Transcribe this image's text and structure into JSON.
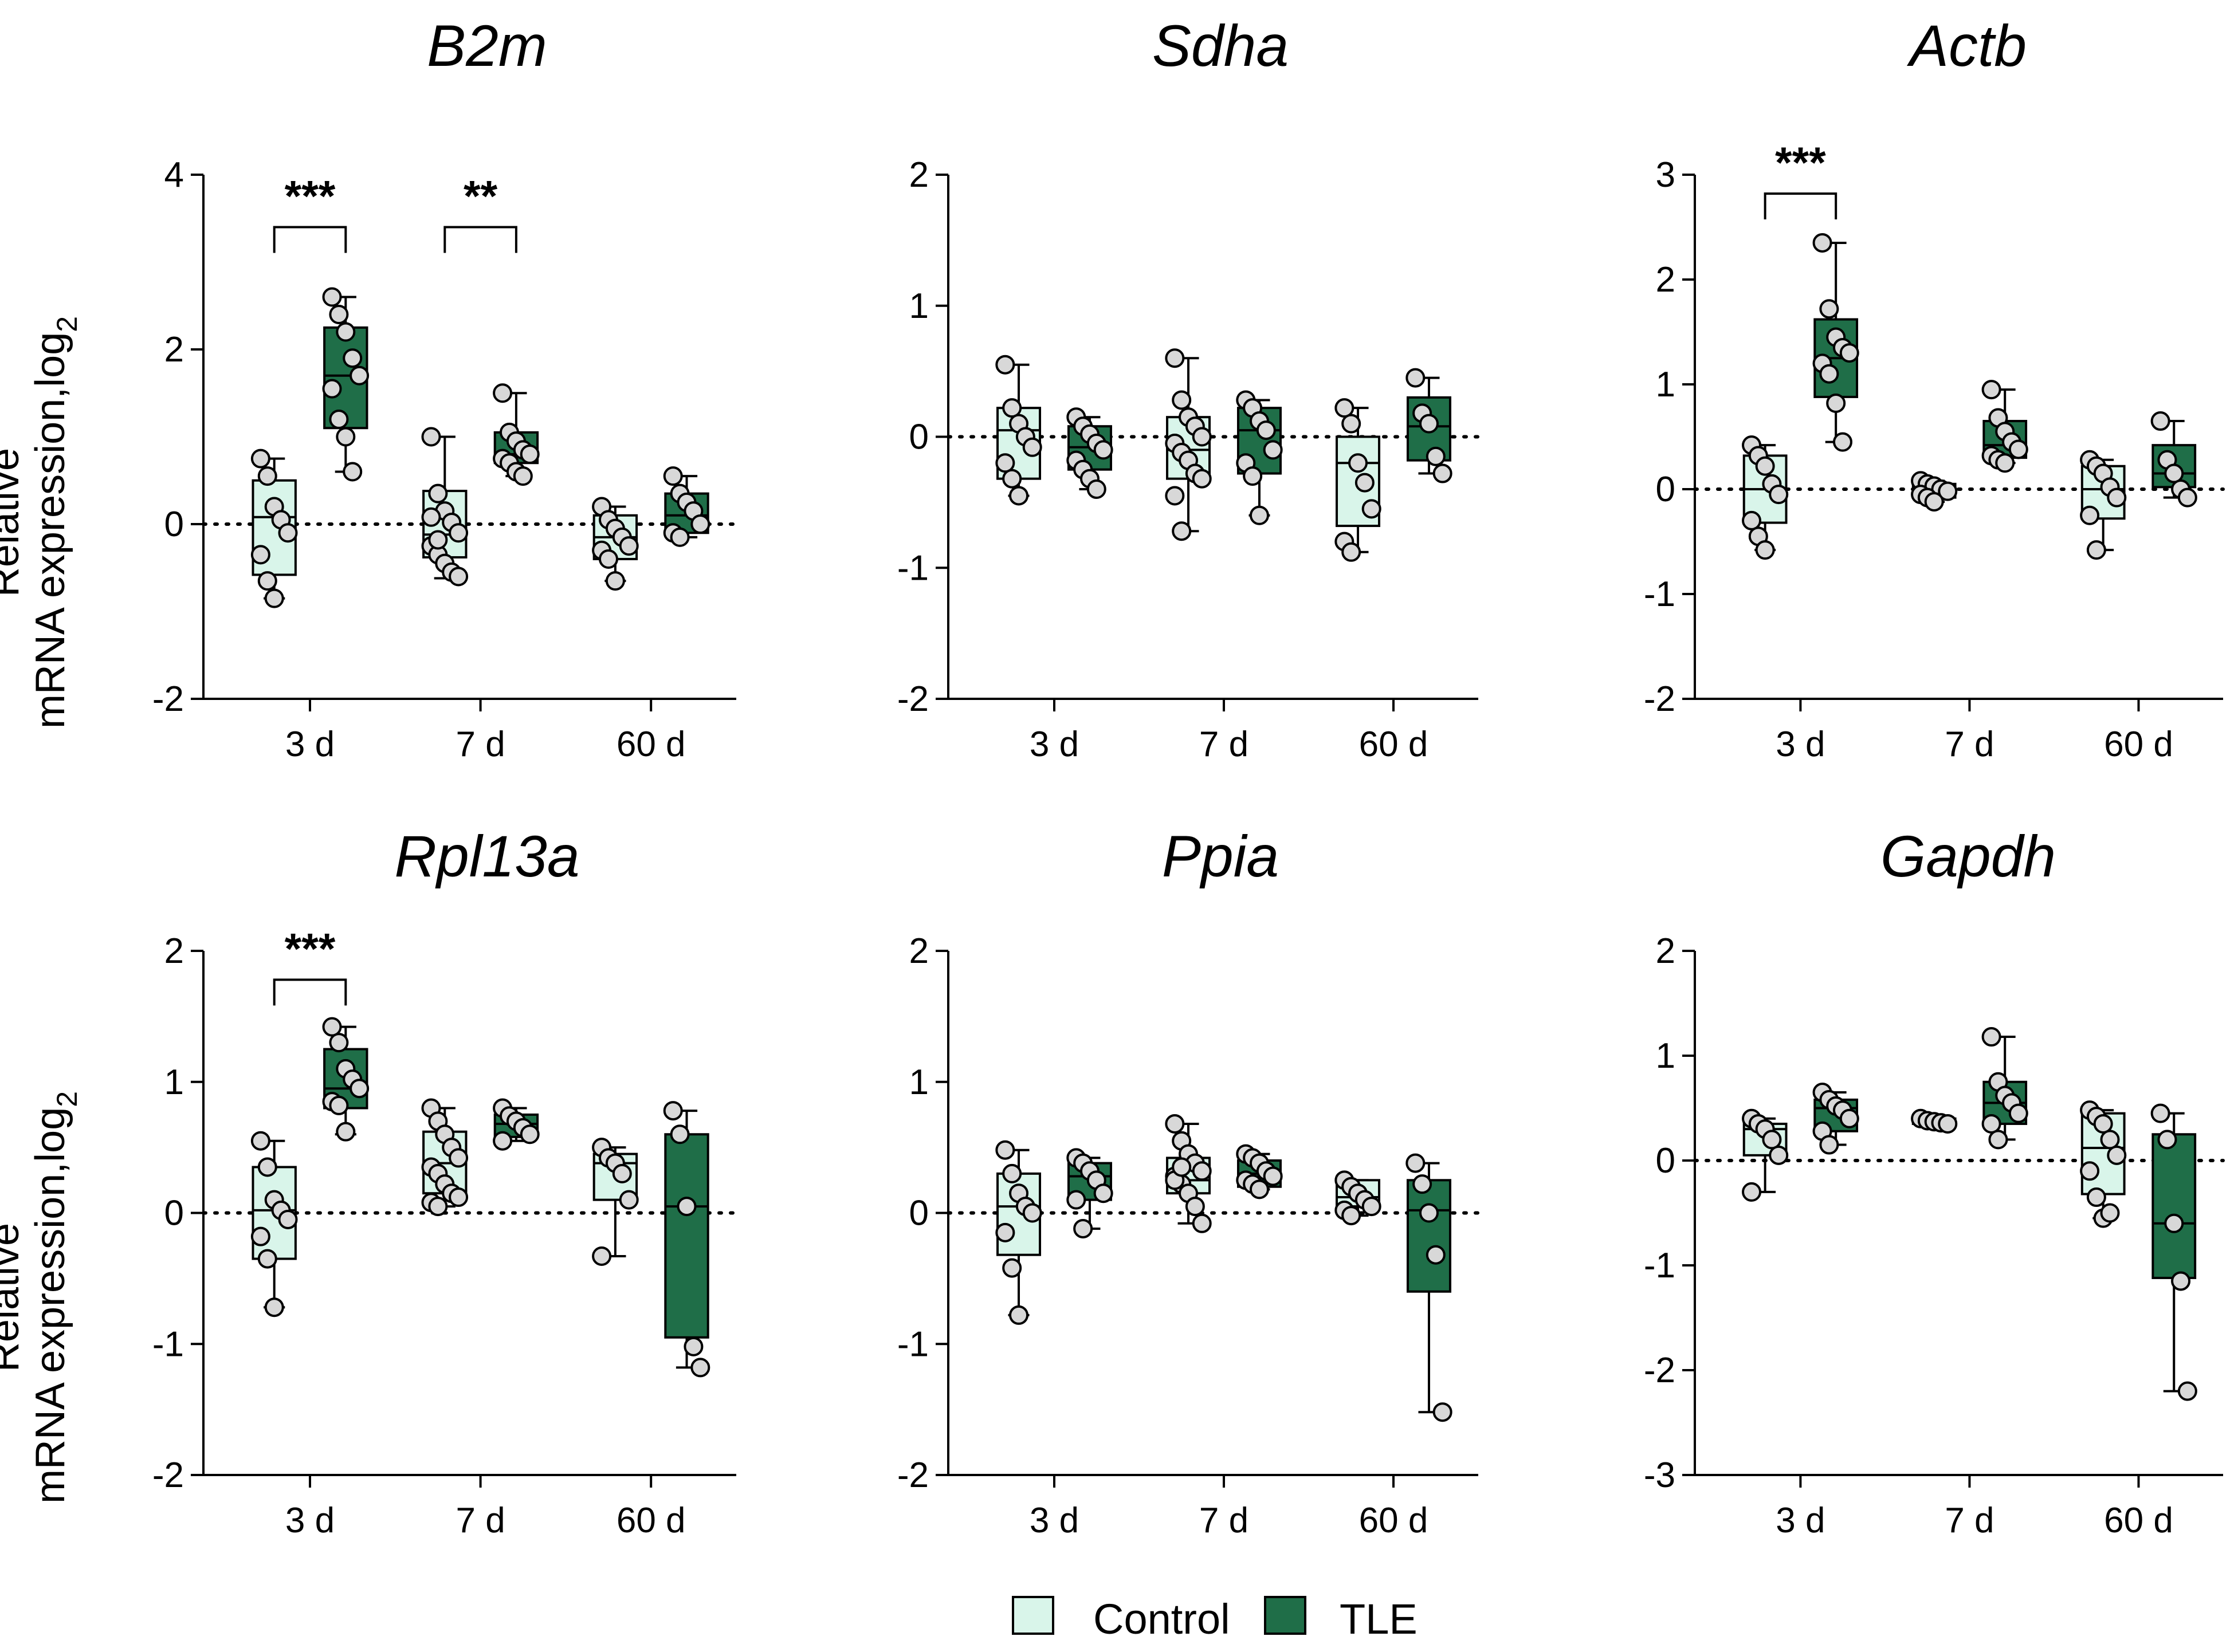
{
  "colors": {
    "control": "#d9f5ea",
    "tle": "#1f6e48",
    "point": "#d8d8d8",
    "axis": "#000000"
  },
  "ylabel": {
    "line1": "Relative",
    "line2": "mRNA expression,log",
    "sub": "2"
  },
  "legend": {
    "control": "Control",
    "tle": "TLE"
  },
  "chart_data": [
    {
      "type": "box",
      "title": "B2m",
      "ylim": [
        -2,
        4
      ],
      "yticks": [
        -2,
        0,
        2,
        4
      ],
      "ytick_labels": [
        "-2",
        "0",
        "2",
        "4"
      ],
      "categories": [
        "3 d",
        "7 d",
        "60 d"
      ],
      "series": [
        {
          "name": "Control",
          "boxes": [
            {
              "min": -0.85,
              "q1": -0.58,
              "median": 0.08,
              "q3": 0.5,
              "max": 0.75,
              "points": [
                0.75,
                0.55,
                0.2,
                0.05,
                -0.1,
                -0.35,
                -0.65,
                -0.85
              ]
            },
            {
              "min": -0.62,
              "q1": -0.38,
              "median": -0.12,
              "q3": 0.38,
              "max": 1.0,
              "points": [
                1.0,
                0.35,
                0.15,
                0.02,
                -0.1,
                -0.25,
                -0.35,
                -0.45,
                -0.55,
                -0.6,
                0.08,
                -0.18
              ]
            },
            {
              "min": -0.65,
              "q1": -0.4,
              "median": -0.15,
              "q3": 0.1,
              "max": 0.2,
              "points": [
                0.2,
                0.05,
                -0.05,
                -0.15,
                -0.25,
                -0.3,
                -0.4,
                -0.65
              ]
            }
          ]
        },
        {
          "name": "TLE",
          "boxes": [
            {
              "min": 0.6,
              "q1": 1.1,
              "median": 1.7,
              "q3": 2.25,
              "max": 2.6,
              "points": [
                2.6,
                2.4,
                2.2,
                1.9,
                1.7,
                1.55,
                1.2,
                1.0,
                0.6
              ]
            },
            {
              "min": 0.55,
              "q1": 0.7,
              "median": 0.8,
              "q3": 1.05,
              "max": 1.5,
              "points": [
                1.5,
                1.05,
                0.95,
                0.85,
                0.8,
                0.75,
                0.7,
                0.6,
                0.55
              ]
            },
            {
              "min": -0.15,
              "q1": -0.1,
              "median": 0.1,
              "q3": 0.35,
              "max": 0.55,
              "points": [
                0.55,
                0.35,
                0.25,
                0.15,
                0.0,
                -0.1,
                -0.15
              ]
            }
          ]
        }
      ],
      "significance": [
        {
          "category": 0,
          "label": "***",
          "y": 3.4
        },
        {
          "category": 1,
          "label": "**",
          "y": 3.4
        }
      ]
    },
    {
      "type": "box",
      "title": "Sdha",
      "ylim": [
        -2,
        2
      ],
      "yticks": [
        -2,
        -1,
        0,
        1,
        2
      ],
      "ytick_labels": [
        "-2",
        "-1",
        "0",
        "1",
        "2"
      ],
      "categories": [
        "3 d",
        "7 d",
        "60 d"
      ],
      "series": [
        {
          "name": "Control",
          "boxes": [
            {
              "min": -0.45,
              "q1": -0.32,
              "median": 0.05,
              "q3": 0.22,
              "max": 0.55,
              "points": [
                0.55,
                0.22,
                0.1,
                0.0,
                -0.08,
                -0.2,
                -0.32,
                -0.45
              ]
            },
            {
              "min": -0.72,
              "q1": -0.32,
              "median": -0.1,
              "q3": 0.15,
              "max": 0.6,
              "points": [
                0.6,
                0.28,
                0.15,
                0.08,
                0.0,
                -0.05,
                -0.12,
                -0.18,
                -0.28,
                -0.32,
                -0.45,
                -0.72
              ]
            },
            {
              "min": -0.88,
              "q1": -0.68,
              "median": -0.2,
              "q3": 0.0,
              "max": 0.22,
              "points": [
                0.22,
                0.1,
                -0.2,
                -0.35,
                -0.55,
                -0.8,
                -0.88
              ]
            }
          ]
        },
        {
          "name": "TLE",
          "boxes": [
            {
              "min": -0.4,
              "q1": -0.25,
              "median": -0.08,
              "q3": 0.08,
              "max": 0.15,
              "points": [
                0.15,
                0.08,
                0.02,
                -0.05,
                -0.1,
                -0.18,
                -0.25,
                -0.32,
                -0.4
              ]
            },
            {
              "min": -0.6,
              "q1": -0.28,
              "median": 0.05,
              "q3": 0.22,
              "max": 0.28,
              "points": [
                0.28,
                0.22,
                0.12,
                0.05,
                -0.1,
                -0.2,
                -0.3,
                -0.6
              ]
            },
            {
              "min": -0.28,
              "q1": -0.18,
              "median": 0.08,
              "q3": 0.3,
              "max": 0.45,
              "points": [
                0.45,
                0.18,
                0.1,
                -0.15,
                -0.28
              ]
            }
          ]
        }
      ],
      "significance": []
    },
    {
      "type": "box",
      "title": "Actb",
      "ylim": [
        -2,
        3
      ],
      "yticks": [
        -2,
        -1,
        0,
        1,
        2,
        3
      ],
      "ytick_labels": [
        "-2",
        "-1",
        "0",
        "1",
        "2",
        "3"
      ],
      "categories": [
        "3 d",
        "7 d",
        "60 d"
      ],
      "series": [
        {
          "name": "Control",
          "boxes": [
            {
              "min": -0.58,
              "q1": -0.32,
              "median": 0.0,
              "q3": 0.32,
              "max": 0.42,
              "points": [
                0.42,
                0.32,
                0.22,
                0.05,
                -0.05,
                -0.3,
                -0.45,
                -0.58
              ]
            },
            {
              "min": -0.12,
              "q1": -0.08,
              "median": 0.0,
              "q3": 0.05,
              "max": 0.08,
              "points": [
                0.08,
                0.05,
                0.03,
                0.0,
                -0.02,
                -0.05,
                -0.08,
                -0.12
              ]
            },
            {
              "min": -0.58,
              "q1": -0.28,
              "median": 0.0,
              "q3": 0.22,
              "max": 0.28,
              "points": [
                0.28,
                0.22,
                0.15,
                0.02,
                -0.08,
                -0.25,
                -0.58
              ]
            }
          ]
        },
        {
          "name": "TLE",
          "boxes": [
            {
              "min": 0.45,
              "q1": 0.88,
              "median": 1.25,
              "q3": 1.62,
              "max": 2.35,
              "points": [
                2.35,
                1.72,
                1.45,
                1.35,
                1.3,
                1.2,
                1.1,
                0.82,
                0.45
              ]
            },
            {
              "min": 0.25,
              "q1": 0.3,
              "median": 0.42,
              "q3": 0.65,
              "max": 0.95,
              "points": [
                0.95,
                0.68,
                0.55,
                0.45,
                0.38,
                0.32,
                0.28,
                0.25
              ]
            },
            {
              "min": -0.08,
              "q1": 0.02,
              "median": 0.15,
              "q3": 0.42,
              "max": 0.65,
              "points": [
                0.65,
                0.28,
                0.15,
                0.0,
                -0.08
              ]
            }
          ]
        }
      ],
      "significance": [
        {
          "category": 0,
          "label": "***",
          "y": 2.82
        }
      ]
    },
    {
      "type": "box",
      "title": "Rpl13a",
      "ylim": [
        -2,
        2
      ],
      "yticks": [
        -2,
        -1,
        0,
        1,
        2
      ],
      "ytick_labels": [
        "-2",
        "-1",
        "0",
        "1",
        "2"
      ],
      "categories": [
        "3 d",
        "7 d",
        "60 d"
      ],
      "series": [
        {
          "name": "Control",
          "boxes": [
            {
              "min": -0.72,
              "q1": -0.35,
              "median": 0.02,
              "q3": 0.35,
              "max": 0.55,
              "points": [
                0.55,
                0.35,
                0.1,
                0.02,
                -0.05,
                -0.18,
                -0.35,
                -0.72
              ]
            },
            {
              "min": 0.05,
              "q1": 0.15,
              "median": 0.38,
              "q3": 0.62,
              "max": 0.8,
              "points": [
                0.8,
                0.7,
                0.6,
                0.5,
                0.42,
                0.35,
                0.3,
                0.22,
                0.15,
                0.12,
                0.08,
                0.05
              ]
            },
            {
              "min": -0.33,
              "q1": 0.1,
              "median": 0.38,
              "q3": 0.45,
              "max": 0.5,
              "points": [
                0.5,
                0.42,
                0.38,
                0.3,
                0.1,
                -0.33
              ]
            }
          ]
        },
        {
          "name": "TLE",
          "boxes": [
            {
              "min": 0.6,
              "q1": 0.8,
              "median": 0.95,
              "q3": 1.25,
              "max": 1.42,
              "points": [
                1.42,
                1.3,
                1.1,
                1.02,
                0.95,
                0.85,
                0.82,
                0.62
              ]
            },
            {
              "min": 0.55,
              "q1": 0.58,
              "median": 0.68,
              "q3": 0.75,
              "max": 0.8,
              "points": [
                0.8,
                0.74,
                0.7,
                0.65,
                0.6,
                0.55
              ]
            },
            {
              "min": -1.18,
              "q1": -0.95,
              "median": 0.05,
              "q3": 0.6,
              "max": 0.78,
              "points": [
                0.78,
                0.6,
                0.05,
                -1.02,
                -1.18
              ]
            }
          ]
        }
      ],
      "significance": [
        {
          "category": 0,
          "label": "***",
          "y": 1.78
        }
      ]
    },
    {
      "type": "box",
      "title": "Ppia",
      "ylim": [
        -2,
        2
      ],
      "yticks": [
        -2,
        -1,
        0,
        1,
        2
      ],
      "ytick_labels": [
        "-2",
        "-1",
        "0",
        "1",
        "2"
      ],
      "categories": [
        "3 d",
        "7 d",
        "60 d"
      ],
      "series": [
        {
          "name": "Control",
          "boxes": [
            {
              "min": -0.78,
              "q1": -0.32,
              "median": 0.05,
              "q3": 0.3,
              "max": 0.48,
              "points": [
                0.48,
                0.3,
                0.15,
                0.05,
                0.0,
                -0.15,
                -0.42,
                -0.78
              ]
            },
            {
              "min": -0.08,
              "q1": 0.15,
              "median": 0.25,
              "q3": 0.42,
              "max": 0.68,
              "points": [
                0.68,
                0.55,
                0.45,
                0.38,
                0.32,
                0.28,
                0.22,
                0.15,
                0.05,
                -0.08,
                0.25,
                0.35
              ]
            },
            {
              "min": -0.02,
              "q1": 0.05,
              "median": 0.12,
              "q3": 0.25,
              "max": 0.25,
              "points": [
                0.25,
                0.2,
                0.15,
                0.1,
                0.05,
                0.02,
                -0.02
              ]
            }
          ]
        },
        {
          "name": "TLE",
          "boxes": [
            {
              "min": -0.12,
              "q1": 0.1,
              "median": 0.28,
              "q3": 0.38,
              "max": 0.42,
              "points": [
                0.42,
                0.38,
                0.32,
                0.25,
                0.15,
                0.1,
                -0.12
              ]
            },
            {
              "min": 0.18,
              "q1": 0.2,
              "median": 0.3,
              "q3": 0.4,
              "max": 0.45,
              "points": [
                0.45,
                0.42,
                0.38,
                0.32,
                0.28,
                0.25,
                0.22,
                0.18
              ]
            },
            {
              "min": -1.52,
              "q1": -0.6,
              "median": 0.02,
              "q3": 0.25,
              "max": 0.38,
              "points": [
                0.38,
                0.22,
                0.0,
                -0.32,
                -1.52
              ]
            }
          ]
        }
      ],
      "significance": []
    },
    {
      "type": "box",
      "title": "Gapdh",
      "ylim": [
        -3,
        2
      ],
      "yticks": [
        -3,
        -2,
        -1,
        0,
        1,
        2
      ],
      "ytick_labels": [
        "-3",
        "-2",
        "-1",
        "0",
        "1",
        "2"
      ],
      "categories": [
        "3 d",
        "7 d",
        "60 d"
      ],
      "series": [
        {
          "name": "Control",
          "boxes": [
            {
              "min": -0.3,
              "q1": 0.05,
              "median": 0.3,
              "q3": 0.35,
              "max": 0.4,
              "points": [
                0.4,
                0.35,
                0.3,
                0.2,
                0.05,
                -0.3
              ]
            },
            {
              "min": 0.35,
              "q1": 0.35,
              "median": 0.37,
              "q3": 0.4,
              "max": 0.4,
              "points": [
                0.4,
                0.38,
                0.37,
                0.36,
                0.35
              ]
            },
            {
              "min": -0.55,
              "q1": -0.32,
              "median": 0.12,
              "q3": 0.45,
              "max": 0.48,
              "points": [
                0.48,
                0.42,
                0.35,
                0.2,
                0.05,
                -0.1,
                -0.35,
                -0.55,
                -0.5
              ]
            }
          ]
        },
        {
          "name": "TLE",
          "boxes": [
            {
              "min": 0.15,
              "q1": 0.28,
              "median": 0.5,
              "q3": 0.58,
              "max": 0.65,
              "points": [
                0.65,
                0.58,
                0.52,
                0.48,
                0.4,
                0.28,
                0.15
              ]
            },
            {
              "min": 0.2,
              "q1": 0.35,
              "median": 0.55,
              "q3": 0.75,
              "max": 1.18,
              "points": [
                1.18,
                0.75,
                0.62,
                0.55,
                0.45,
                0.35,
                0.2
              ]
            },
            {
              "min": -2.2,
              "q1": -1.12,
              "median": -0.6,
              "q3": 0.25,
              "max": 0.45,
              "points": [
                0.45,
                0.2,
                -0.6,
                -1.15,
                -2.2
              ]
            }
          ]
        }
      ],
      "significance": []
    }
  ]
}
